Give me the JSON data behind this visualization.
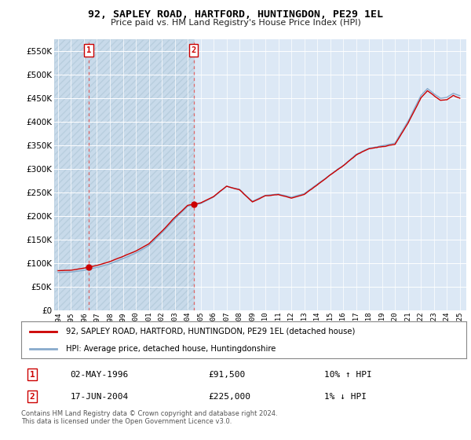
{
  "title": "92, SAPLEY ROAD, HARTFORD, HUNTINGDON, PE29 1EL",
  "subtitle": "Price paid vs. HM Land Registry's House Price Index (HPI)",
  "legend_line1": "92, SAPLEY ROAD, HARTFORD, HUNTINGDON, PE29 1EL (detached house)",
  "legend_line2": "HPI: Average price, detached house, Huntingdonshire",
  "transaction1_date": "02-MAY-1996",
  "transaction1_price": "£91,500",
  "transaction1_hpi": "10% ↑ HPI",
  "transaction2_date": "17-JUN-2004",
  "transaction2_price": "£225,000",
  "transaction2_hpi": "1% ↓ HPI",
  "footer": "Contains HM Land Registry data © Crown copyright and database right 2024.\nThis data is licensed under the Open Government Licence v3.0.",
  "line_color_red": "#cc0000",
  "line_color_blue": "#88aacc",
  "dashed_line_color": "#dd6666",
  "marker_color": "#cc0000",
  "background_color": "#dce8f5",
  "hatch_background": "#c8daea",
  "grid_color": "#ffffff",
  "ylim": [
    0,
    575000
  ],
  "yticks": [
    0,
    50000,
    100000,
    150000,
    200000,
    250000,
    300000,
    350000,
    400000,
    450000,
    500000,
    550000
  ],
  "transaction1_x": 1996.37,
  "transaction1_y": 91500,
  "transaction2_x": 2004.46,
  "transaction2_y": 225000,
  "xmin": 1993.7,
  "xmax": 2025.5
}
